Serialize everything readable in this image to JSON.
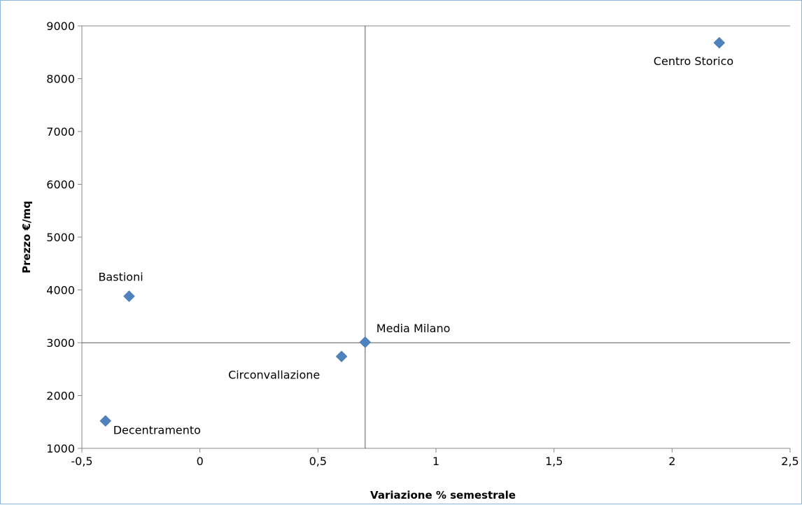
{
  "chart_data": {
    "type": "scatter",
    "title": "",
    "xlabel": "Variazione % semestrale",
    "ylabel": "Prezzo €/mq",
    "xlim": [
      -0.5,
      2.5
    ],
    "ylim": [
      1000,
      9000
    ],
    "x_ticks": [
      -0.5,
      0,
      0.5,
      1,
      1.5,
      2,
      2.5
    ],
    "x_tick_labels": [
      "-0,5",
      "0",
      "0,5",
      "1",
      "1,5",
      "2",
      "2,5"
    ],
    "y_ticks": [
      1000,
      2000,
      3000,
      4000,
      5000,
      6000,
      7000,
      8000,
      9000
    ],
    "y_tick_labels": [
      "1000",
      "2000",
      "3000",
      "4000",
      "5000",
      "6000",
      "7000",
      "8000",
      "9000"
    ],
    "grid": false,
    "legend": "none",
    "marker": "diamond",
    "marker_color": "#4f81bd",
    "reference_lines": {
      "x": 0.7,
      "y": 3000
    },
    "points": [
      {
        "label": "Centro Storico",
        "x": 2.2,
        "y": 8680
      },
      {
        "label": "Bastioni",
        "x": -0.3,
        "y": 3880
      },
      {
        "label": "Media Milano",
        "x": 0.7,
        "y": 3010
      },
      {
        "label": "Circonvallazione",
        "x": 0.6,
        "y": 2740
      },
      {
        "label": "Decentramento",
        "x": -0.4,
        "y": 1520
      }
    ]
  }
}
